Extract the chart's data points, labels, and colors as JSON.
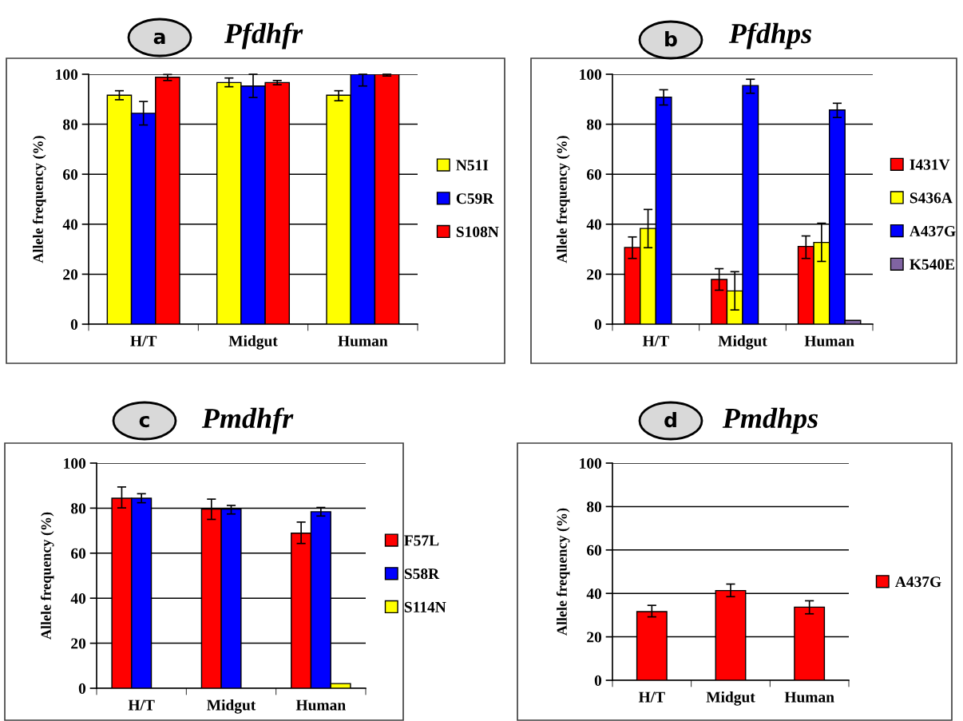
{
  "chart_data": [
    {
      "type": "bar",
      "title": "Pfdhfr",
      "annotations": [
        "a"
      ],
      "ylabel": "Allele frequency (%)",
      "categories": [
        "H/T",
        "Midgut",
        "Human"
      ],
      "ylim": [
        0,
        100
      ],
      "yticks": [
        0,
        20,
        40,
        60,
        80,
        100
      ],
      "grid": "y",
      "legend": "right",
      "series": [
        {
          "name": "N51I",
          "color": "#ffff00",
          "values": [
            91.6,
            96.7,
            91.6
          ],
          "errors": [
            [
              89.8,
              93.4
            ],
            [
              95,
              98.5
            ],
            [
              89.4,
              93.4
            ]
          ]
        },
        {
          "name": "C59R",
          "color": "#0000ff",
          "values": [
            84.4,
            95.3,
            100
          ],
          "errors": [
            [
              79.7,
              89.1
            ],
            [
              90.7,
              100
            ],
            [
              95.3,
              100
            ]
          ]
        },
        {
          "name": "S108N",
          "color": "#ff0000",
          "values": [
            98.8,
            96.7,
            100
          ],
          "errors": [
            [
              97.5,
              99.9
            ],
            [
              95.8,
              97.5
            ],
            [
              99.3,
              100
            ]
          ]
        }
      ]
    },
    {
      "type": "bar",
      "title": "Pfdhps",
      "annotations": [
        "b"
      ],
      "ylabel": "Allele frequency (%)",
      "categories": [
        "H/T",
        "Midgut",
        "Human"
      ],
      "ylim": [
        0,
        100
      ],
      "yticks": [
        0,
        20,
        40,
        60,
        80,
        100
      ],
      "grid": "y",
      "legend": "right",
      "series": [
        {
          "name": "I431V",
          "color": "#ff0000",
          "values": [
            30.7,
            17.9,
            31.1
          ],
          "errors": [
            [
              26.3,
              34.9
            ],
            [
              13.6,
              22.2
            ],
            [
              26.3,
              35.3
            ]
          ]
        },
        {
          "name": "S436A",
          "color": "#ffff00",
          "values": [
            38.3,
            13.3,
            32.7
          ],
          "errors": [
            [
              30.6,
              45.9
            ],
            [
              5.7,
              21
            ],
            [
              25.1,
              40.4
            ]
          ]
        },
        {
          "name": "A437G",
          "color": "#0000ff",
          "values": [
            90.8,
            95.5,
            85.7
          ],
          "errors": [
            [
              87.7,
              93.8
            ],
            [
              92.4,
              98
            ],
            [
              82.7,
              88.4
            ]
          ]
        },
        {
          "name": "K540E",
          "color": "#8064a2",
          "values": [
            null,
            null,
            1.5
          ]
        }
      ]
    },
    {
      "type": "bar",
      "title": "Pmdhfr",
      "annotations": [
        "c"
      ],
      "ylabel": "Allele frequency (%)",
      "categories": [
        "H/T",
        "Midgut",
        "Human"
      ],
      "ylim": [
        0,
        100
      ],
      "yticks": [
        0,
        20,
        40,
        60,
        80,
        100
      ],
      "grid": "y",
      "legend": "right",
      "series": [
        {
          "name": "F57L",
          "color": "#ff0000",
          "values": [
            84.4,
            79.6,
            68.9
          ],
          "errors": [
            [
              80.1,
              89.4
            ],
            [
              75,
              84
            ],
            [
              64.3,
              73.8
            ]
          ]
        },
        {
          "name": "S58R",
          "color": "#0000ff",
          "values": [
            84.4,
            79.6,
            78.4
          ],
          "errors": [
            [
              82.4,
              86.4
            ],
            [
              77.4,
              81.2
            ],
            [
              76.5,
              80.3
            ]
          ]
        },
        {
          "name": "S114N",
          "color": "#ffff00",
          "values": [
            null,
            null,
            2.1
          ]
        }
      ]
    },
    {
      "type": "bar",
      "title": "Pmdhps",
      "annotations": [
        "d"
      ],
      "ylabel": "Allele frequency (%)",
      "categories": [
        "H/T",
        "Midgut",
        "Human"
      ],
      "ylim": [
        0,
        100
      ],
      "yticks": [
        0,
        20,
        40,
        60,
        80,
        100
      ],
      "grid": "y",
      "legend": "right",
      "series": [
        {
          "name": "A437G",
          "color": "#ff0000",
          "values": [
            31.6,
            41.3,
            33.7
          ],
          "errors": [
            [
              29.2,
              34.5
            ],
            [
              38.5,
              44.3
            ],
            [
              30.6,
              36.6
            ]
          ]
        }
      ]
    }
  ]
}
